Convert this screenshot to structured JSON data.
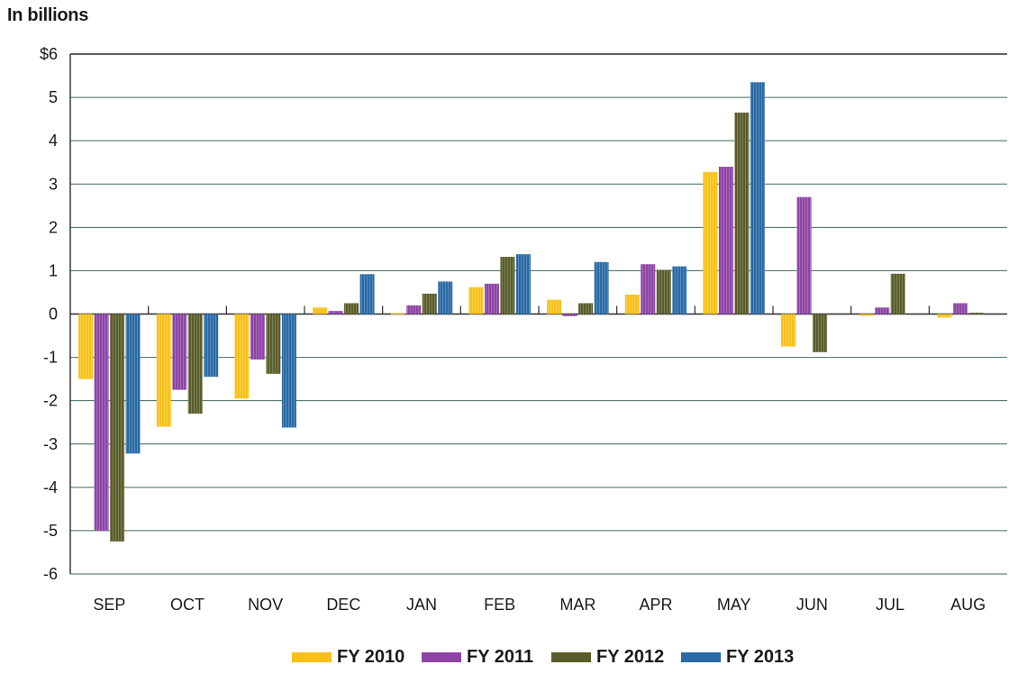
{
  "chart_data": {
    "type": "bar",
    "title": "",
    "xlabel": "",
    "ylabel": "In billions",
    "ylim": [
      -6,
      6
    ],
    "y_ticks": [
      "$6",
      "5",
      "4",
      "3",
      "2",
      "1",
      "0",
      "-1",
      "-2",
      "-3",
      "-4",
      "-5",
      "-6"
    ],
    "categories": [
      "SEP",
      "OCT",
      "NOV",
      "DEC",
      "JAN",
      "FEB",
      "MAR",
      "APR",
      "MAY",
      "JUN",
      "JUL",
      "AUG"
    ],
    "grid": true,
    "legend_position": "bottom",
    "series": [
      {
        "name": "FY 2010",
        "color": "#f7c11a",
        "values": [
          -1.5,
          -2.6,
          -1.95,
          0.15,
          0.02,
          0.62,
          0.33,
          0.45,
          3.28,
          -0.75,
          -0.04,
          -0.08
        ]
      },
      {
        "name": "FY 2011",
        "color": "#8d45a5",
        "values": [
          -5.0,
          -1.75,
          -1.05,
          0.07,
          0.2,
          0.7,
          -0.05,
          1.15,
          3.4,
          2.7,
          0.15,
          0.25
        ]
      },
      {
        "name": "FY 2012",
        "color": "#5a5d2a",
        "values": [
          -5.25,
          -2.3,
          -1.38,
          0.25,
          0.47,
          1.32,
          0.25,
          1.02,
          4.65,
          -0.88,
          0.93,
          0.03
        ]
      },
      {
        "name": "FY 2013",
        "color": "#2a6aa5",
        "values": [
          -3.22,
          -1.45,
          -2.62,
          0.92,
          0.75,
          1.38,
          1.2,
          1.1,
          5.35,
          null,
          null,
          null
        ]
      }
    ]
  }
}
